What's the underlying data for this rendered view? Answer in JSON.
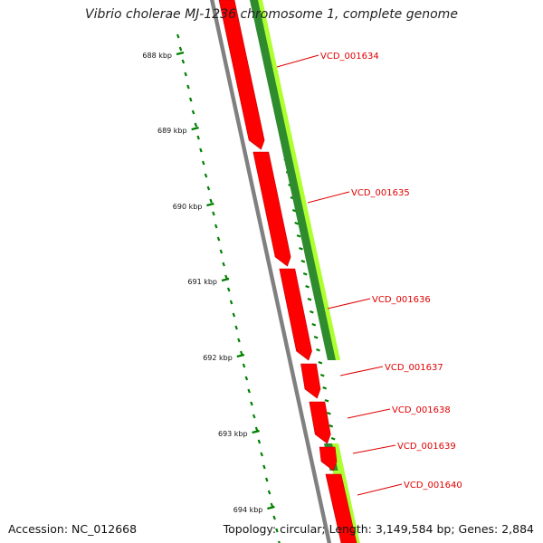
{
  "title": "Vibrio cholerae MJ-1236 chromosome 1, complete genome",
  "footer": {
    "accession": "Accession: NC_012668",
    "summary": "Topology: circular; Length: 3,149,584 bp; Genes: 2,884"
  },
  "ticks": [
    "688 kbp",
    "689 kbp",
    "690 kbp",
    "691 kbp",
    "692 kbp",
    "693 kbp",
    "694 kbp"
  ],
  "genes": [
    "VCD_001634",
    "VCD_001635",
    "VCD_001636",
    "VCD_001637",
    "VCD_001638",
    "VCD_001639",
    "VCD_001640"
  ],
  "colors": {
    "gene": "#ff0000",
    "gene_label": "#e00000",
    "feature_dark": "#2e8b2e",
    "feature_light": "#adff2f",
    "backbone": "#808080",
    "tick": "#008000"
  }
}
